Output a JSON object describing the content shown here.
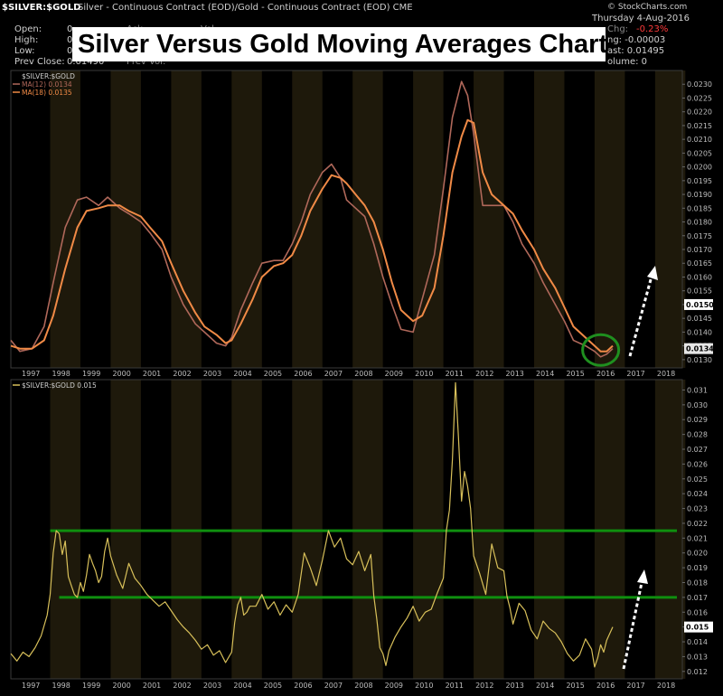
{
  "header": {
    "symbol": "$SILVER:$GOLD",
    "description": "Silver - Continuous Contract (EOD)/Gold - Continuous Contract (EOD) CME",
    "source": "© StockCharts.com",
    "date": "Thursday  4-Aug-2016",
    "left_labels": [
      "Open:",
      "High:",
      "Low:",
      "Prev Close:"
    ],
    "left_values": [
      "0.",
      "0.",
      "0.",
      "0.01490"
    ],
    "mid_labels": [
      "Ask:",
      "Vol:",
      "Prev Vol:"
    ],
    "right_values": [
      "-0.23%",
      "ng: -0.00003",
      "ast: 0.01495",
      "olume: 0"
    ],
    "right_prefix": "Chg:",
    "banner": "Silver Versus Gold Moving Averages Chart"
  },
  "colors": {
    "background": "#000000",
    "band": "#1e190b",
    "ma12": "#b0685a",
    "ma18": "#f08a46",
    "ratio": "#d8c05a",
    "support": "#0f8f0f",
    "highlight_circle": "#1f8f1f",
    "arrow": "#ffffff",
    "negative": "#ff3a3a"
  },
  "chart_data": [
    {
      "type": "line",
      "panel": "top",
      "legend": [
        "$SILVER:$GOLD",
        "MA(12) 0.0134",
        "MA(18) 0.0135"
      ],
      "x_ticks": [
        "1997",
        "1998",
        "1999",
        "2000",
        "2001",
        "2002",
        "2003",
        "2004",
        "2005",
        "2006",
        "2007",
        "2008",
        "2009",
        "2010",
        "2011",
        "2012",
        "2013",
        "2014",
        "2015",
        "2016",
        "2017",
        "2018"
      ],
      "xlim": [
        1996.7,
        2018.9
      ],
      "ylim": [
        0.0127,
        0.0235
      ],
      "y_ticks": [
        "0.0130",
        "0.0135",
        "0.0140",
        "0.0145",
        "0.0150",
        "0.0155",
        "0.0160",
        "0.0165",
        "0.0170",
        "0.0175",
        "0.0180",
        "0.0185",
        "0.0190",
        "0.0195",
        "0.0200",
        "0.0205",
        "0.0210",
        "0.0215",
        "0.0220",
        "0.0225",
        "0.0230"
      ],
      "last_labels": [
        "0.0150",
        "0.0134"
      ],
      "series": [
        {
          "name": "MA(12) 0.0134",
          "x": [
            1996.7,
            1997.0,
            1997.4,
            1997.8,
            1998.1,
            1998.5,
            1998.9,
            1999.2,
            1999.6,
            1999.9,
            2000.3,
            2000.6,
            2001.0,
            2001.3,
            2001.7,
            2002.0,
            2002.4,
            2002.8,
            2003.1,
            2003.5,
            2003.8,
            2004.0,
            2004.3,
            2004.7,
            2005.0,
            2005.4,
            2005.7,
            2006.0,
            2006.3,
            2006.6,
            2007.0,
            2007.3,
            2007.6,
            2007.8,
            2008.1,
            2008.4,
            2008.7,
            2009.0,
            2009.3,
            2009.6,
            2010.0,
            2010.3,
            2010.7,
            2011.0,
            2011.3,
            2011.6,
            2011.8,
            2012.0,
            2012.3,
            2012.6,
            2013.0,
            2013.3,
            2013.6,
            2014.0,
            2014.3,
            2014.7,
            2015.0,
            2015.3,
            2015.7,
            2016.0,
            2016.2,
            2016.4,
            2016.6
          ],
          "y": [
            0.0137,
            0.0133,
            0.0134,
            0.0142,
            0.0158,
            0.0178,
            0.0188,
            0.0189,
            0.0186,
            0.0189,
            0.0185,
            0.0183,
            0.018,
            0.0176,
            0.017,
            0.016,
            0.015,
            0.0143,
            0.014,
            0.0136,
            0.0135,
            0.0138,
            0.0148,
            0.0158,
            0.0165,
            0.0166,
            0.0166,
            0.0172,
            0.018,
            0.019,
            0.0198,
            0.0201,
            0.0196,
            0.0188,
            0.0185,
            0.0182,
            0.0172,
            0.016,
            0.015,
            0.0141,
            0.014,
            0.0152,
            0.0168,
            0.0192,
            0.0218,
            0.0231,
            0.0226,
            0.0212,
            0.0186,
            0.0186,
            0.0186,
            0.018,
            0.0172,
            0.0165,
            0.0158,
            0.015,
            0.0144,
            0.0137,
            0.0135,
            0.0133,
            0.0131,
            0.0132,
            0.0134
          ]
        },
        {
          "name": "MA(18) 0.0135",
          "x": [
            1996.7,
            1997.0,
            1997.4,
            1997.8,
            1998.1,
            1998.5,
            1998.9,
            1999.2,
            1999.6,
            1999.9,
            2000.3,
            2000.6,
            2001.0,
            2001.3,
            2001.7,
            2002.0,
            2002.4,
            2002.8,
            2003.1,
            2003.5,
            2003.8,
            2004.0,
            2004.3,
            2004.7,
            2005.0,
            2005.4,
            2005.7,
            2006.0,
            2006.3,
            2006.6,
            2007.0,
            2007.3,
            2007.6,
            2007.8,
            2008.1,
            2008.4,
            2008.7,
            2009.0,
            2009.3,
            2009.6,
            2010.0,
            2010.3,
            2010.7,
            2011.0,
            2011.3,
            2011.6,
            2011.8,
            2012.0,
            2012.3,
            2012.6,
            2013.0,
            2013.3,
            2013.6,
            2014.0,
            2014.3,
            2014.7,
            2015.0,
            2015.3,
            2015.7,
            2016.0,
            2016.2,
            2016.4,
            2016.6
          ],
          "y": [
            0.0135,
            0.0134,
            0.0134,
            0.0137,
            0.0146,
            0.0163,
            0.0178,
            0.0184,
            0.0185,
            0.0186,
            0.0186,
            0.0184,
            0.0182,
            0.0178,
            0.0173,
            0.0165,
            0.0155,
            0.0147,
            0.0142,
            0.0139,
            0.0136,
            0.0137,
            0.0143,
            0.0152,
            0.016,
            0.0164,
            0.0165,
            0.0168,
            0.0175,
            0.0184,
            0.0192,
            0.0197,
            0.0196,
            0.0194,
            0.019,
            0.0186,
            0.018,
            0.017,
            0.0158,
            0.0148,
            0.0144,
            0.0146,
            0.0156,
            0.0175,
            0.0198,
            0.0211,
            0.0217,
            0.0216,
            0.0198,
            0.019,
            0.0186,
            0.0183,
            0.0177,
            0.017,
            0.0163,
            0.0156,
            0.0149,
            0.0142,
            0.0138,
            0.0135,
            0.0133,
            0.0133,
            0.0135
          ]
        }
      ]
    },
    {
      "type": "line",
      "panel": "bottom",
      "legend": [
        "$SILVER:$GOLD 0.015"
      ],
      "x_ticks": [
        "1997",
        "1998",
        "1999",
        "2000",
        "2001",
        "2002",
        "2003",
        "2004",
        "2005",
        "2006",
        "2007",
        "2008",
        "2009",
        "2010",
        "2011",
        "2012",
        "2013",
        "2014",
        "2015",
        "2016",
        "2017",
        "2018"
      ],
      "xlim": [
        1996.7,
        2018.9
      ],
      "ylim": [
        0.0115,
        0.0317
      ],
      "y_ticks": [
        "0.012",
        "0.013",
        "0.014",
        "0.015",
        "0.016",
        "0.017",
        "0.018",
        "0.019",
        "0.020",
        "0.021",
        "0.022",
        "0.023",
        "0.024",
        "0.025",
        "0.026",
        "0.027",
        "0.028",
        "0.029",
        "0.030",
        "0.031"
      ],
      "last_labels": [
        "0.015"
      ],
      "support_levels": [
        0.0215,
        0.017
      ],
      "series": [
        {
          "name": "$SILVER:$GOLD 0.015",
          "x": [
            1996.7,
            1996.9,
            1997.1,
            1997.3,
            1997.5,
            1997.7,
            1997.9,
            1998.0,
            1998.1,
            1998.2,
            1998.3,
            1998.4,
            1998.5,
            1998.6,
            1998.7,
            1998.8,
            1998.9,
            1999.0,
            1999.1,
            1999.2,
            1999.3,
            1999.4,
            1999.5,
            1999.6,
            1999.7,
            1999.8,
            1999.9,
            2000.0,
            2000.2,
            2000.4,
            2000.6,
            2000.8,
            2001.0,
            2001.2,
            2001.4,
            2001.6,
            2001.8,
            2002.0,
            2002.2,
            2002.4,
            2002.6,
            2002.8,
            2003.0,
            2003.2,
            2003.4,
            2003.6,
            2003.8,
            2004.0,
            2004.1,
            2004.2,
            2004.3,
            2004.4,
            2004.5,
            2004.6,
            2004.8,
            2005.0,
            2005.2,
            2005.4,
            2005.6,
            2005.8,
            2006.0,
            2006.2,
            2006.4,
            2006.6,
            2006.8,
            2007.0,
            2007.2,
            2007.4,
            2007.6,
            2007.8,
            2008.0,
            2008.2,
            2008.4,
            2008.6,
            2008.7,
            2008.8,
            2008.9,
            2009.0,
            2009.1,
            2009.2,
            2009.4,
            2009.6,
            2009.8,
            2010.0,
            2010.2,
            2010.4,
            2010.6,
            2010.8,
            2011.0,
            2011.1,
            2011.2,
            2011.3,
            2011.4,
            2011.5,
            2011.6,
            2011.7,
            2011.8,
            2011.9,
            2012.0,
            2012.2,
            2012.4,
            2012.6,
            2012.8,
            2013.0,
            2013.1,
            2013.2,
            2013.3,
            2013.5,
            2013.7,
            2013.9,
            2014.1,
            2014.3,
            2014.5,
            2014.7,
            2014.9,
            2015.1,
            2015.3,
            2015.5,
            2015.7,
            2015.9,
            2016.0,
            2016.1,
            2016.2,
            2016.3,
            2016.4,
            2016.6
          ],
          "y": [
            0.0132,
            0.0127,
            0.0133,
            0.013,
            0.0136,
            0.0144,
            0.0158,
            0.0172,
            0.02,
            0.0215,
            0.0213,
            0.0199,
            0.0208,
            0.0184,
            0.0178,
            0.0172,
            0.017,
            0.018,
            0.0174,
            0.0185,
            0.0199,
            0.0193,
            0.0188,
            0.018,
            0.0184,
            0.0201,
            0.021,
            0.0198,
            0.0185,
            0.0176,
            0.0193,
            0.0183,
            0.0178,
            0.0172,
            0.0168,
            0.0164,
            0.0167,
            0.0161,
            0.0155,
            0.015,
            0.0146,
            0.0141,
            0.0135,
            0.0138,
            0.0131,
            0.0134,
            0.0126,
            0.0133,
            0.0153,
            0.0165,
            0.017,
            0.0158,
            0.016,
            0.0164,
            0.0164,
            0.0172,
            0.0162,
            0.0167,
            0.0158,
            0.0165,
            0.016,
            0.0172,
            0.02,
            0.019,
            0.0178,
            0.0195,
            0.0215,
            0.0204,
            0.021,
            0.0196,
            0.0192,
            0.0201,
            0.0188,
            0.0199,
            0.0171,
            0.0155,
            0.0136,
            0.0132,
            0.0124,
            0.0134,
            0.0143,
            0.015,
            0.0156,
            0.0164,
            0.0154,
            0.016,
            0.0162,
            0.0173,
            0.0183,
            0.0215,
            0.0229,
            0.0263,
            0.0315,
            0.0278,
            0.0235,
            0.0255,
            0.0245,
            0.023,
            0.0198,
            0.0186,
            0.0172,
            0.0206,
            0.019,
            0.0188,
            0.0171,
            0.0163,
            0.0152,
            0.0166,
            0.0161,
            0.0148,
            0.0142,
            0.0154,
            0.0149,
            0.0146,
            0.014,
            0.0132,
            0.0127,
            0.0131,
            0.0142,
            0.0135,
            0.0123,
            0.0129,
            0.0138,
            0.0133,
            0.0141,
            0.015
          ]
        }
      ]
    }
  ]
}
